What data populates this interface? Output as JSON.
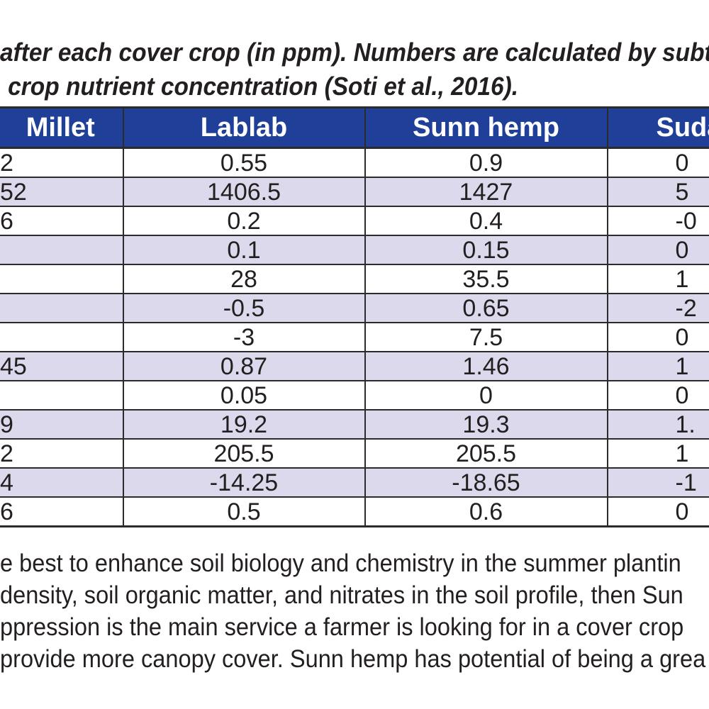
{
  "caption": {
    "line1": "after each cover crop (in ppm). Numbers are calculated by subtractin",
    "line2": "crop nutrient concentration (Soti et al., 2016)."
  },
  "table": {
    "headers": [
      "Millet",
      "Lablab",
      "Sunn hemp",
      "Suda"
    ],
    "rows": [
      [
        "2",
        "0.55",
        "0.9",
        "0"
      ],
      [
        "52",
        "1406.5",
        "1427",
        "5"
      ],
      [
        "6",
        "0.2",
        "0.4",
        "-0"
      ],
      [
        "",
        "0.1",
        "0.15",
        "0"
      ],
      [
        "",
        "28",
        "35.5",
        "1"
      ],
      [
        "",
        "-0.5",
        "0.65",
        "-2"
      ],
      [
        "",
        "-3",
        "7.5",
        "0"
      ],
      [
        "45",
        "0.87",
        "1.46",
        "1"
      ],
      [
        "",
        "0.05",
        "0",
        "0"
      ],
      [
        "9",
        "19.2",
        "19.3",
        "1."
      ],
      [
        "2",
        "205.5",
        "205.5",
        "1"
      ],
      [
        "4",
        "-14.25",
        "-18.65",
        "-1"
      ],
      [
        "6",
        "0.5",
        "0.6",
        "0"
      ]
    ]
  },
  "paragraph": {
    "line1": "e best to enhance soil biology and chemistry in the summer plantin",
    "line2": "density, soil organic matter, and nitrates in the soil profile, then Sun",
    "line3": "ppression is the main service a farmer is looking for in a cover crop",
    "line4": "provide more canopy cover. Sunn hemp has potential of being a grea"
  },
  "colors": {
    "header_background": "#1f3f99",
    "header_text": "#ffffff",
    "alt_row_background": "#dbd9eb",
    "body_text": "#231f20",
    "border": "#2b2b2b"
  }
}
